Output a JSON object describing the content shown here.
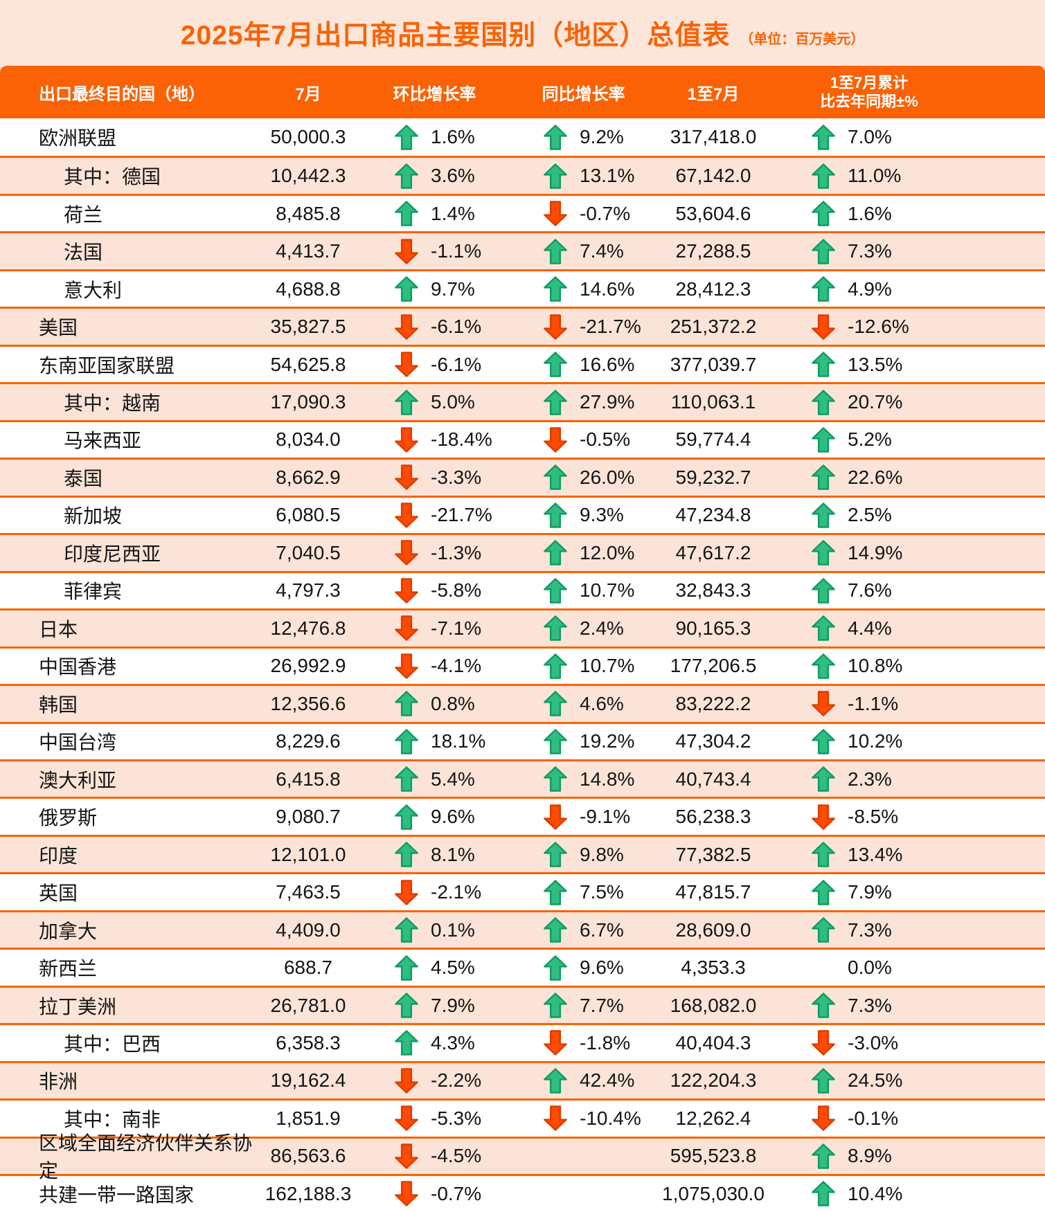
{
  "title": "2025年7月出口商品主要国别（地区）总值表",
  "unit_label": "（单位：百万美元）",
  "columns": [
    "出口最终目的国（地）",
    "7月",
    "环比增长率",
    "同比增长率",
    "1至7月",
    "1至7月累计\n比去年同期±%"
  ],
  "colors": {
    "page_bg": "#fce5d9",
    "header_bg": "#fa6205",
    "divider": "#fa6205",
    "alt_row_bg": "#fbe4d7",
    "title_color": "#f96205",
    "up_arrow": "#2fbe82",
    "up_arrow_outline": "#129b63",
    "down_arrow": "#ff4b02",
    "down_arrow_outline": "#dd3d00"
  },
  "rows": [
    {
      "name": "欧洲联盟",
      "indent": false,
      "jul": "50,000.3",
      "mom": {
        "dir": "up",
        "value": "1.6%"
      },
      "yoy": {
        "dir": "up",
        "value": "9.2%"
      },
      "cum": "317,418.0",
      "cumpct": {
        "dir": "up",
        "value": "7.0%"
      }
    },
    {
      "name": "其中：德国",
      "indent": true,
      "jul": "10,442.3",
      "mom": {
        "dir": "up",
        "value": "3.6%"
      },
      "yoy": {
        "dir": "up",
        "value": "13.1%"
      },
      "cum": "67,142.0",
      "cumpct": {
        "dir": "up",
        "value": "11.0%"
      }
    },
    {
      "name": "荷兰",
      "indent": true,
      "jul": "8,485.8",
      "mom": {
        "dir": "up",
        "value": "1.4%"
      },
      "yoy": {
        "dir": "down",
        "value": "-0.7%"
      },
      "cum": "53,604.6",
      "cumpct": {
        "dir": "up",
        "value": "1.6%"
      }
    },
    {
      "name": "法国",
      "indent": true,
      "jul": "4,413.7",
      "mom": {
        "dir": "down",
        "value": "-1.1%"
      },
      "yoy": {
        "dir": "up",
        "value": "7.4%"
      },
      "cum": "27,288.5",
      "cumpct": {
        "dir": "up",
        "value": "7.3%"
      }
    },
    {
      "name": "意大利",
      "indent": true,
      "jul": "4,688.8",
      "mom": {
        "dir": "up",
        "value": "9.7%"
      },
      "yoy": {
        "dir": "up",
        "value": "14.6%"
      },
      "cum": "28,412.3",
      "cumpct": {
        "dir": "up",
        "value": "4.9%"
      }
    },
    {
      "name": "美国",
      "indent": false,
      "jul": "35,827.5",
      "mom": {
        "dir": "down",
        "value": "-6.1%"
      },
      "yoy": {
        "dir": "down",
        "value": "-21.7%"
      },
      "cum": "251,372.2",
      "cumpct": {
        "dir": "down",
        "value": "-12.6%"
      }
    },
    {
      "name": "东南亚国家联盟",
      "indent": false,
      "jul": "54,625.8",
      "mom": {
        "dir": "down",
        "value": "-6.1%"
      },
      "yoy": {
        "dir": "up",
        "value": "16.6%"
      },
      "cum": "377,039.7",
      "cumpct": {
        "dir": "up",
        "value": "13.5%"
      }
    },
    {
      "name": "其中：越南",
      "indent": true,
      "jul": "17,090.3",
      "mom": {
        "dir": "up",
        "value": "5.0%"
      },
      "yoy": {
        "dir": "up",
        "value": "27.9%"
      },
      "cum": "110,063.1",
      "cumpct": {
        "dir": "up",
        "value": "20.7%"
      }
    },
    {
      "name": "马来西亚",
      "indent": true,
      "jul": "8,034.0",
      "mom": {
        "dir": "down",
        "value": "-18.4%"
      },
      "yoy": {
        "dir": "down",
        "value": "-0.5%"
      },
      "cum": "59,774.4",
      "cumpct": {
        "dir": "up",
        "value": "5.2%"
      }
    },
    {
      "name": "泰国",
      "indent": true,
      "jul": "8,662.9",
      "mom": {
        "dir": "down",
        "value": "-3.3%"
      },
      "yoy": {
        "dir": "up",
        "value": "26.0%"
      },
      "cum": "59,232.7",
      "cumpct": {
        "dir": "up",
        "value": "22.6%"
      }
    },
    {
      "name": "新加坡",
      "indent": true,
      "jul": "6,080.5",
      "mom": {
        "dir": "down",
        "value": "-21.7%"
      },
      "yoy": {
        "dir": "up",
        "value": "9.3%"
      },
      "cum": "47,234.8",
      "cumpct": {
        "dir": "up",
        "value": "2.5%"
      }
    },
    {
      "name": "印度尼西亚",
      "indent": true,
      "jul": "7,040.5",
      "mom": {
        "dir": "down",
        "value": "-1.3%"
      },
      "yoy": {
        "dir": "up",
        "value": "12.0%"
      },
      "cum": "47,617.2",
      "cumpct": {
        "dir": "up",
        "value": "14.9%"
      }
    },
    {
      "name": "菲律宾",
      "indent": true,
      "jul": "4,797.3",
      "mom": {
        "dir": "down",
        "value": "-5.8%"
      },
      "yoy": {
        "dir": "up",
        "value": "10.7%"
      },
      "cum": "32,843.3",
      "cumpct": {
        "dir": "up",
        "value": "7.6%"
      }
    },
    {
      "name": "日本",
      "indent": false,
      "jul": "12,476.8",
      "mom": {
        "dir": "down",
        "value": "-7.1%"
      },
      "yoy": {
        "dir": "up",
        "value": "2.4%"
      },
      "cum": "90,165.3",
      "cumpct": {
        "dir": "up",
        "value": "4.4%"
      }
    },
    {
      "name": "中国香港",
      "indent": false,
      "jul": "26,992.9",
      "mom": {
        "dir": "down",
        "value": "-4.1%"
      },
      "yoy": {
        "dir": "up",
        "value": "10.7%"
      },
      "cum": "177,206.5",
      "cumpct": {
        "dir": "up",
        "value": "10.8%"
      }
    },
    {
      "name": "韩国",
      "indent": false,
      "jul": "12,356.6",
      "mom": {
        "dir": "up",
        "value": "0.8%"
      },
      "yoy": {
        "dir": "up",
        "value": "4.6%"
      },
      "cum": "83,222.2",
      "cumpct": {
        "dir": "down",
        "value": "-1.1%"
      }
    },
    {
      "name": "中国台湾",
      "indent": false,
      "jul": "8,229.6",
      "mom": {
        "dir": "up",
        "value": "18.1%"
      },
      "yoy": {
        "dir": "up",
        "value": "19.2%"
      },
      "cum": "47,304.2",
      "cumpct": {
        "dir": "up",
        "value": "10.2%"
      }
    },
    {
      "name": "澳大利亚",
      "indent": false,
      "jul": "6,415.8",
      "mom": {
        "dir": "up",
        "value": "5.4%"
      },
      "yoy": {
        "dir": "up",
        "value": "14.8%"
      },
      "cum": "40,743.4",
      "cumpct": {
        "dir": "up",
        "value": "2.3%"
      }
    },
    {
      "name": "俄罗斯",
      "indent": false,
      "jul": "9,080.7",
      "mom": {
        "dir": "up",
        "value": "9.6%"
      },
      "yoy": {
        "dir": "down",
        "value": "-9.1%"
      },
      "cum": "56,238.3",
      "cumpct": {
        "dir": "down",
        "value": "-8.5%"
      }
    },
    {
      "name": "印度",
      "indent": false,
      "jul": "12,101.0",
      "mom": {
        "dir": "up",
        "value": "8.1%"
      },
      "yoy": {
        "dir": "up",
        "value": "9.8%"
      },
      "cum": "77,382.5",
      "cumpct": {
        "dir": "up",
        "value": "13.4%"
      }
    },
    {
      "name": "英国",
      "indent": false,
      "jul": "7,463.5",
      "mom": {
        "dir": "down",
        "value": "-2.1%"
      },
      "yoy": {
        "dir": "up",
        "value": "7.5%"
      },
      "cum": "47,815.7",
      "cumpct": {
        "dir": "up",
        "value": "7.9%"
      }
    },
    {
      "name": "加拿大",
      "indent": false,
      "jul": "4,409.0",
      "mom": {
        "dir": "up",
        "value": "0.1%"
      },
      "yoy": {
        "dir": "up",
        "value": "6.7%"
      },
      "cum": "28,609.0",
      "cumpct": {
        "dir": "up",
        "value": "7.3%"
      }
    },
    {
      "name": "新西兰",
      "indent": false,
      "jul": "688.7",
      "mom": {
        "dir": "up",
        "value": "4.5%"
      },
      "yoy": {
        "dir": "up",
        "value": "9.6%"
      },
      "cum": "4,353.3",
      "cumpct": {
        "dir": "none",
        "value": "0.0%"
      }
    },
    {
      "name": "拉丁美洲",
      "indent": false,
      "jul": "26,781.0",
      "mom": {
        "dir": "up",
        "value": "7.9%"
      },
      "yoy": {
        "dir": "up",
        "value": "7.7%"
      },
      "cum": "168,082.0",
      "cumpct": {
        "dir": "up",
        "value": "7.3%"
      }
    },
    {
      "name": "其中：巴西",
      "indent": true,
      "jul": "6,358.3",
      "mom": {
        "dir": "up",
        "value": "4.3%"
      },
      "yoy": {
        "dir": "down",
        "value": "-1.8%"
      },
      "cum": "40,404.3",
      "cumpct": {
        "dir": "down",
        "value": "-3.0%"
      }
    },
    {
      "name": "非洲",
      "indent": false,
      "jul": "19,162.4",
      "mom": {
        "dir": "down",
        "value": "-2.2%"
      },
      "yoy": {
        "dir": "up",
        "value": "42.4%"
      },
      "cum": "122,204.3",
      "cumpct": {
        "dir": "up",
        "value": "24.5%"
      }
    },
    {
      "name": "其中：南非",
      "indent": true,
      "jul": "1,851.9",
      "mom": {
        "dir": "down",
        "value": "-5.3%"
      },
      "yoy": {
        "dir": "down",
        "value": "-10.4%"
      },
      "cum": "12,262.4",
      "cumpct": {
        "dir": "down",
        "value": "-0.1%"
      }
    },
    {
      "name": "区域全面经济伙伴关系协定",
      "indent": false,
      "jul": "86,563.6",
      "mom": {
        "dir": "down",
        "value": "-4.5%"
      },
      "yoy": {
        "dir": "none",
        "value": ""
      },
      "cum": "595,523.8",
      "cumpct": {
        "dir": "up",
        "value": "8.9%"
      }
    },
    {
      "name": "共建一带一路国家",
      "indent": false,
      "jul": "162,188.3",
      "mom": {
        "dir": "down",
        "value": "-0.7%"
      },
      "yoy": {
        "dir": "none",
        "value": ""
      },
      "cum": "1,075,030.0",
      "cumpct": {
        "dir": "up",
        "value": "10.4%"
      }
    }
  ]
}
